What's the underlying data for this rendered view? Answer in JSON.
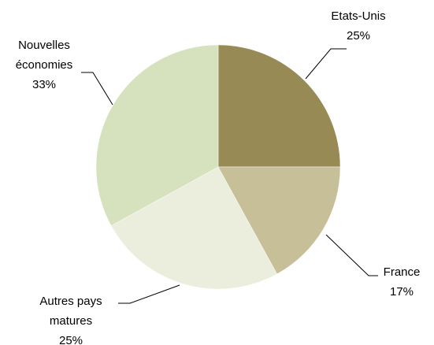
{
  "chart_data": {
    "type": "pie",
    "categories": [
      "Etats-Unis",
      "France",
      "Autres pays matures",
      "Nouvelles économies"
    ],
    "values": [
      25,
      17,
      25,
      33
    ],
    "value_labels": [
      "25%",
      "17%",
      "25%",
      "33%"
    ],
    "colors": [
      "#978a55",
      "#c6bf98",
      "#ebeedc",
      "#d6e2bd"
    ]
  }
}
